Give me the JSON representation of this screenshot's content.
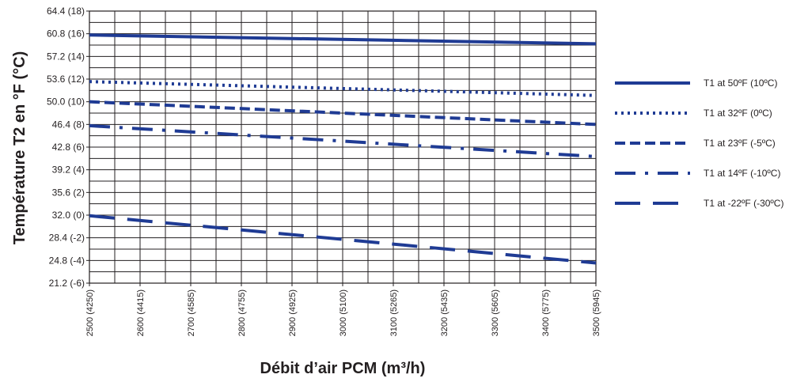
{
  "chart_data": {
    "type": "line",
    "title": "",
    "xlabel": "Débit d’air PCM (m³/h)",
    "ylabel": "Température T2 en °F (°C)",
    "x_ticks": [
      "2500 (4250)",
      "2600 (4415)",
      "2700 (4585)",
      "2800 (4755)",
      "2900 (4925)",
      "3000 (5100)",
      "3100 (5265)",
      "3200 (5435)",
      "3300 (5605)",
      "3400 (5775)",
      "3500 (5945)"
    ],
    "y_ticks": [
      "64.4 (18)",
      "60.8 (16)",
      "57.2 (14)",
      "53.6 (12)",
      "50.0 (10)",
      "46.4 (8)",
      "42.8 (6)",
      "39.2 (4)",
      "35.6 (2)",
      "32.0 (0)",
      "28.4 (-2)",
      "24.8 (-4)",
      "21.2 (-6)"
    ],
    "xlim": [
      2500,
      3500
    ],
    "ylim": [
      21.2,
      64.4
    ],
    "grid": true,
    "legend_position": "right",
    "line_color": "#1f3b94",
    "series": [
      {
        "name": "T1 at 50ºF (10ºC)",
        "style": "solid",
        "x": [
          2500,
          3500
        ],
        "y": [
          60.6,
          59.2
        ]
      },
      {
        "name": "T1 at 32ºF (0ºC)",
        "style": "dotted",
        "x": [
          2500,
          3500
        ],
        "y": [
          53.2,
          51.0
        ]
      },
      {
        "name": "T1 at 23ºF (-5ºC)",
        "style": "dashed",
        "x": [
          2500,
          3500
        ],
        "y": [
          50.0,
          46.4
        ]
      },
      {
        "name": "T1 at 14ºF (-10ºC)",
        "style": "dash-dot",
        "x": [
          2500,
          3500
        ],
        "y": [
          46.2,
          41.3
        ]
      },
      {
        "name": "T1 at -22ºF (-30ºC)",
        "style": "long-dash",
        "x": [
          2500,
          3500
        ],
        "y": [
          31.9,
          24.4
        ]
      }
    ]
  }
}
